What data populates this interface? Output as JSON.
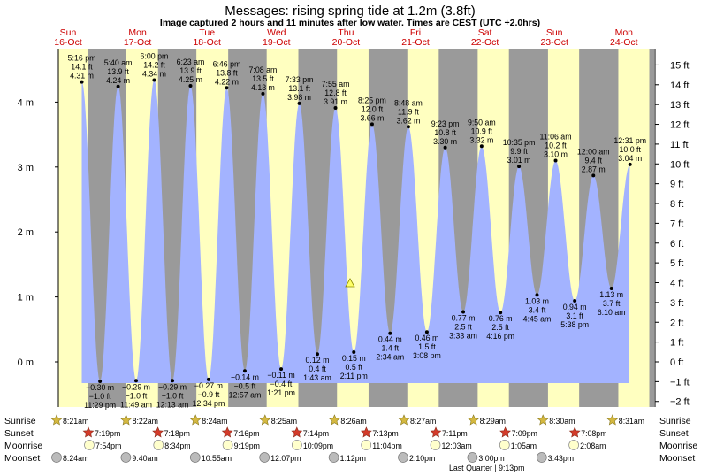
{
  "title": "Messages: rising  spring tide at 1.2m (3.8ft)",
  "subtitle": "Image captured 2 hours and 11 minutes after low water. Times are CEST (UTC +2.0hrs)",
  "days": [
    {
      "dow": "Sun",
      "date": "16-Oct"
    },
    {
      "dow": "Mon",
      "date": "17-Oct"
    },
    {
      "dow": "Tue",
      "date": "18-Oct"
    },
    {
      "dow": "Wed",
      "date": "19-Oct"
    },
    {
      "dow": "Thu",
      "date": "20-Oct"
    },
    {
      "dow": "Fri",
      "date": "21-Oct"
    },
    {
      "dow": "Sat",
      "date": "22-Oct"
    },
    {
      "dow": "Sun",
      "date": "23-Oct"
    },
    {
      "dow": "Mon",
      "date": "24-Oct"
    }
  ],
  "chart_data": {
    "type": "area",
    "title": "Messages: rising  spring tide at 1.2m (3.8ft)",
    "xlabel": "",
    "ylabel": "",
    "left_axis": {
      "unit": "m",
      "ylim": [
        -0.55,
        4.95
      ],
      "ticks": [
        "0 m",
        "1 m",
        "2 m",
        "3 m",
        "4 m"
      ]
    },
    "right_axis": {
      "unit": "ft",
      "ticks": [
        "−2 ft",
        "−1 ft",
        "0 ft",
        "1 ft",
        "2 ft",
        "3 ft",
        "4 ft",
        "5 ft",
        "6 ft",
        "7 ft",
        "8 ft",
        "9 ft",
        "10 ft",
        "11 ft",
        "12 ft",
        "13 ft",
        "14 ft",
        "15 ft"
      ]
    },
    "tide_events": [
      {
        "type": "high",
        "time": "5:16 pm",
        "m": 4.31,
        "ft": "14.1 ft",
        "m_label": "4.31 m"
      },
      {
        "type": "low",
        "time": "11:29 pm",
        "m": -0.3,
        "ft": "−1.0 ft",
        "m_label": "−0.30 m"
      },
      {
        "type": "high",
        "time": "5:40 am",
        "m": 4.24,
        "ft": "13.9 ft",
        "m_label": "4.24 m"
      },
      {
        "type": "low",
        "time": "11:49 am",
        "m": -0.29,
        "ft": "−1.0 ft",
        "m_label": "−0.29 m"
      },
      {
        "type": "high",
        "time": "6:00 pm",
        "m": 4.34,
        "ft": "14.2 ft",
        "m_label": "4.34 m"
      },
      {
        "type": "low",
        "time": "12:13 am",
        "m": -0.29,
        "ft": "−1.0 ft",
        "m_label": "−0.29 m"
      },
      {
        "type": "high",
        "time": "6:23 am",
        "m": 4.25,
        "ft": "13.9 ft",
        "m_label": "4.25 m"
      },
      {
        "type": "low",
        "time": "12:34 pm",
        "m": -0.27,
        "ft": "−0.9 ft",
        "m_label": "−0.27 m"
      },
      {
        "type": "high",
        "time": "6:46 pm",
        "m": 4.22,
        "ft": "13.8 ft",
        "m_label": "4.22 m"
      },
      {
        "type": "low",
        "time": "12:57 am",
        "m": -0.14,
        "ft": "−0.5 ft",
        "m_label": "−0.14 m"
      },
      {
        "type": "high",
        "time": "7:08 am",
        "m": 4.13,
        "ft": "13.5 ft",
        "m_label": "4.13 m"
      },
      {
        "type": "low",
        "time": "1:21 pm",
        "m": -0.11,
        "ft": "−0.4 ft",
        "m_label": "−0.11 m"
      },
      {
        "type": "high",
        "time": "7:33 pm",
        "m": 3.98,
        "ft": "13.1 ft",
        "m_label": "3.98 m"
      },
      {
        "type": "low",
        "time": "1:43 am",
        "m": 0.12,
        "ft": "0.4 ft",
        "m_label": "0.12 m"
      },
      {
        "type": "high",
        "time": "7:55 am",
        "m": 3.91,
        "ft": "12.8 ft",
        "m_label": "3.91 m"
      },
      {
        "type": "low",
        "time": "2:11 pm",
        "m": 0.15,
        "ft": "0.5 ft",
        "m_label": "0.15 m"
      },
      {
        "type": "high",
        "time": "8:25 pm",
        "m": 3.66,
        "ft": "12.0 ft",
        "m_label": "3.66 m"
      },
      {
        "type": "low",
        "time": "2:34 am",
        "m": 0.44,
        "ft": "1.4 ft",
        "m_label": "0.44 m"
      },
      {
        "type": "high",
        "time": "8:48 am",
        "m": 3.62,
        "ft": "11.9 ft",
        "m_label": "3.62 m"
      },
      {
        "type": "low",
        "time": "3:08 pm",
        "m": 0.46,
        "ft": "1.5 ft",
        "m_label": "0.46 m"
      },
      {
        "type": "high",
        "time": "9:23 pm",
        "m": 3.3,
        "ft": "10.8 ft",
        "m_label": "3.30 m"
      },
      {
        "type": "low",
        "time": "3:33 am",
        "m": 0.77,
        "ft": "2.5 ft",
        "m_label": "0.77 m"
      },
      {
        "type": "high",
        "time": "9:50 am",
        "m": 3.32,
        "ft": "10.9 ft",
        "m_label": "3.32 m"
      },
      {
        "type": "low",
        "time": "4:16 pm",
        "m": 0.76,
        "ft": "2.5 ft",
        "m_label": "0.76 m"
      },
      {
        "type": "high",
        "time": "10:35 pm",
        "m": 3.01,
        "ft": "9.9 ft",
        "m_label": "3.01 m"
      },
      {
        "type": "low",
        "time": "4:45 am",
        "m": 1.03,
        "ft": "3.4 ft",
        "m_label": "1.03 m"
      },
      {
        "type": "high",
        "time": "11:06 am",
        "m": 3.1,
        "ft": "10.2 ft",
        "m_label": "3.10 m"
      },
      {
        "type": "low",
        "time": "5:38 pm",
        "m": 0.94,
        "ft": "3.1 ft",
        "m_label": "0.94 m"
      },
      {
        "type": "high",
        "time": "12:00 am",
        "m": 2.87,
        "ft": "9.4 ft",
        "m_label": "2.87 m"
      },
      {
        "type": "low",
        "time": "6:10 am",
        "m": 1.13,
        "ft": "3.7 ft",
        "m_label": "1.13 m"
      },
      {
        "type": "high",
        "time": "12:31 pm",
        "m": 3.04,
        "ft": "10.0 ft",
        "m_label": "3.04 m"
      }
    ],
    "current_level_m": 1.2,
    "grid": false,
    "legend": "none"
  },
  "rows": {
    "sunrise_label": "Sunrise",
    "sunset_label": "Sunset",
    "moonrise_label": "Moonrise",
    "moonset_label": "Moonset",
    "sunrise": [
      "8:21am",
      "8:22am",
      "8:24am",
      "8:25am",
      "8:26am",
      "8:27am",
      "8:29am",
      "8:30am",
      "8:31am"
    ],
    "sunset": [
      "7:19pm",
      "7:18pm",
      "7:16pm",
      "7:14pm",
      "7:13pm",
      "7:11pm",
      "7:09pm",
      "7:08pm"
    ],
    "moonrise": [
      "7:54pm",
      "8:34pm",
      "9:19pm",
      "10:09pm",
      "11:04pm",
      "12:03am",
      "1:05am",
      "2:08am"
    ],
    "moonset": [
      "8:24am",
      "9:40am",
      "10:55am",
      "12:07pm",
      "1:12pm",
      "2:10pm",
      "3:00pm",
      "3:43pm"
    ],
    "quarter_note": "Last Quarter | 9:13pm"
  },
  "colors": {
    "water": "#a3b3ff",
    "day": "#ffffc0",
    "night": "#9a9a9a",
    "day_label": "#cc0000",
    "sun_star": "#d4b840",
    "sunset_star": "#d43b2a",
    "moon": "#ffffcc"
  }
}
